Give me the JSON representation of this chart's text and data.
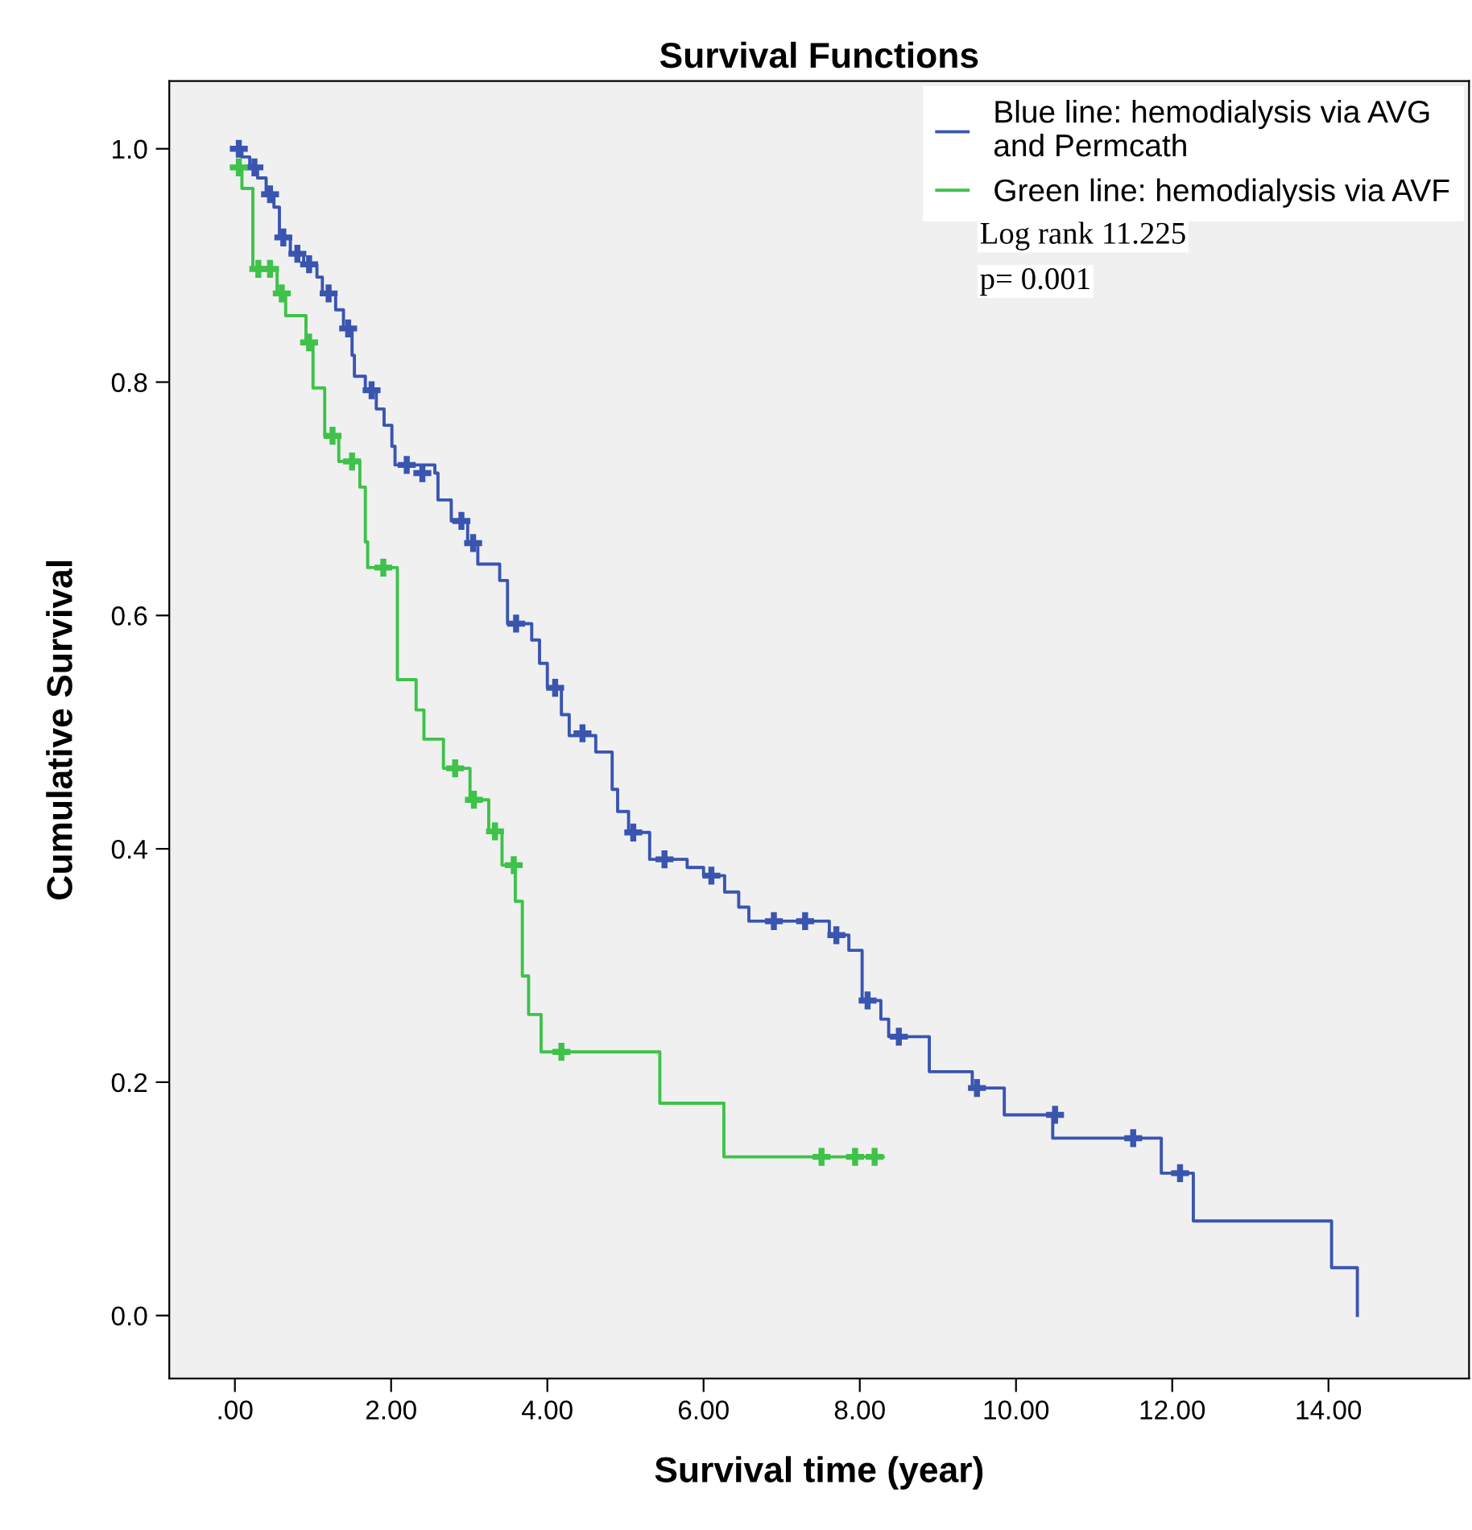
{
  "chart_data": {
    "type": "step",
    "title": "Survival Functions",
    "xlabel": "Survival time (year)",
    "ylabel": "Cumulative Survival",
    "xlim": [
      -0.84,
      15.8
    ],
    "ylim": [
      -0.054,
      1.058
    ],
    "xticks": [
      {
        "value": 0,
        "label": ".00"
      },
      {
        "value": 2,
        "label": "2.00"
      },
      {
        "value": 4,
        "label": "4.00"
      },
      {
        "value": 6,
        "label": "6.00"
      },
      {
        "value": 8,
        "label": "8.00"
      },
      {
        "value": 10,
        "label": "10.00"
      },
      {
        "value": 12,
        "label": "12.00"
      },
      {
        "value": 14,
        "label": "14.00"
      }
    ],
    "yticks": [
      {
        "value": 0,
        "label": "0.0"
      },
      {
        "value": 0.2,
        "label": "0.2"
      },
      {
        "value": 0.4,
        "label": "0.4"
      },
      {
        "value": 0.6,
        "label": "0.6"
      },
      {
        "value": 0.8,
        "label": "0.8"
      },
      {
        "value": 1.0,
        "label": "1.0"
      }
    ],
    "grid": false,
    "legend": "top right",
    "line_style": "solid",
    "series": [
      {
        "name": "Blue line: hemodialysis via AVG\nand Permcath",
        "color": "#3a55b0",
        "x": [
          0,
          0.09,
          0.19,
          0.29,
          0.4,
          0.5,
          0.57,
          0.71,
          0.88,
          1.05,
          1.12,
          1.29,
          1.39,
          1.5,
          1.53,
          1.67,
          1.81,
          1.91,
          2.01,
          2.05,
          2.56,
          2.6,
          2.77,
          2.98,
          3.11,
          3.39,
          3.49,
          3.8,
          3.9,
          4.0,
          4.18,
          4.28,
          4.62,
          4.83,
          4.9,
          5.04,
          5.31,
          5.79,
          6.0,
          6.27,
          6.45,
          6.58,
          7.61,
          7.86,
          8.03,
          8.27,
          8.37,
          8.89,
          9.44,
          9.85,
          10.47,
          11.86,
          12.27,
          14.04,
          14.37
        ],
        "values": [
          1.0,
          0.993,
          0.984,
          0.975,
          0.961,
          0.95,
          0.924,
          0.91,
          0.901,
          0.89,
          0.876,
          0.862,
          0.846,
          0.823,
          0.805,
          0.793,
          0.777,
          0.763,
          0.745,
          0.729,
          0.722,
          0.699,
          0.681,
          0.662,
          0.644,
          0.63,
          0.593,
          0.579,
          0.559,
          0.538,
          0.515,
          0.497,
          0.483,
          0.451,
          0.432,
          0.414,
          0.391,
          0.384,
          0.377,
          0.363,
          0.35,
          0.338,
          0.326,
          0.313,
          0.27,
          0.254,
          0.239,
          0.209,
          0.195,
          0.172,
          0.152,
          0.122,
          0.081,
          0.041,
          0.0
        ]
      },
      {
        "name": "Green line: hemodialysis via AVF",
        "color": "#3ec24a",
        "x": [
          0,
          0.09,
          0.23,
          0.54,
          0.65,
          0.91,
          1.0,
          1.15,
          1.33,
          1.6,
          1.67,
          1.7,
          2.08,
          2.32,
          2.42,
          2.67,
          3.01,
          3.25,
          3.42,
          3.59,
          3.68,
          3.76,
          3.92,
          5.44,
          6.26,
          8.3
        ],
        "values": [
          0.984,
          0.966,
          0.897,
          0.876,
          0.857,
          0.834,
          0.795,
          0.754,
          0.732,
          0.71,
          0.663,
          0.641,
          0.545,
          0.519,
          0.494,
          0.469,
          0.442,
          0.415,
          0.386,
          0.355,
          0.291,
          0.258,
          0.226,
          0.182,
          0.136,
          0.136
        ]
      },
      {
        "type": "scatter",
        "marker": "cross",
        "color": "#3a55b0",
        "x": [
          0.05,
          0.25,
          0.45,
          0.62,
          0.8,
          0.95,
          1.2,
          1.45,
          1.75,
          2.2,
          2.4,
          2.9,
          3.05,
          3.6,
          4.1,
          4.45,
          5.1,
          5.5,
          6.1,
          6.9,
          7.3,
          7.7,
          8.1,
          8.5,
          9.5,
          10.5,
          11.5,
          12.1
        ],
        "values": [
          1.0,
          0.984,
          0.961,
          0.924,
          0.91,
          0.901,
          0.876,
          0.846,
          0.793,
          0.729,
          0.722,
          0.681,
          0.662,
          0.593,
          0.538,
          0.499,
          0.414,
          0.391,
          0.377,
          0.338,
          0.338,
          0.326,
          0.27,
          0.239,
          0.195,
          0.172,
          0.152,
          0.122
        ]
      },
      {
        "type": "scatter",
        "marker": "cross",
        "color": "#3ec24a",
        "x": [
          0.05,
          0.3,
          0.45,
          0.6,
          0.95,
          1.25,
          1.5,
          1.9,
          2.82,
          3.06,
          3.33,
          3.57,
          4.18,
          7.51,
          7.94,
          8.19
        ],
        "values": [
          0.984,
          0.897,
          0.897,
          0.876,
          0.834,
          0.754,
          0.732,
          0.641,
          0.469,
          0.442,
          0.415,
          0.386,
          0.226,
          0.136,
          0.136,
          0.136
        ]
      }
    ],
    "annotations": [
      "Log rank 11.225",
      "p= 0.001"
    ]
  }
}
